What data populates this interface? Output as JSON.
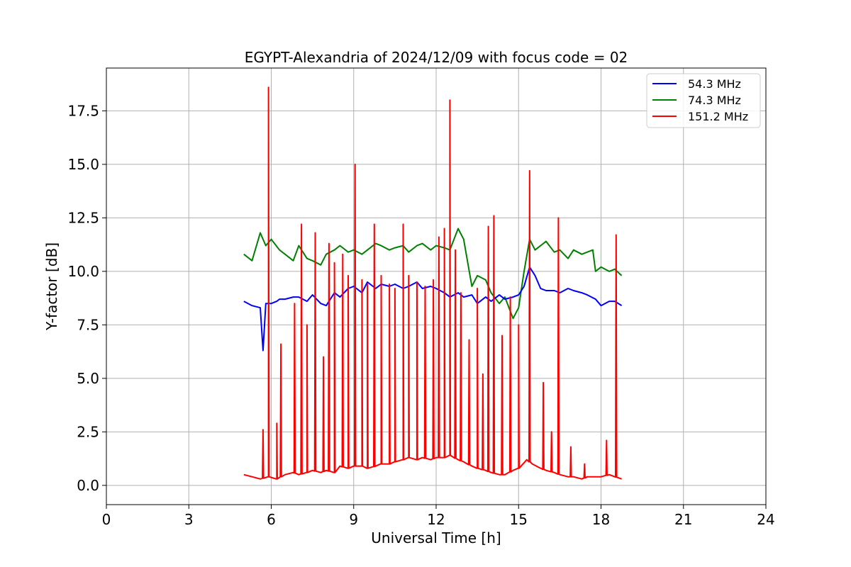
{
  "chart_data": {
    "type": "line",
    "title": "EGYPT-Alexandria of 2024/12/09 with focus code = 02",
    "xlabel": "Universal Time [h]",
    "ylabel": "Y-factor [dB]",
    "xlim": [
      0,
      24
    ],
    "ylim": [
      -0.9,
      19.5
    ],
    "xticks": [
      0,
      3,
      6,
      9,
      12,
      15,
      18,
      21,
      24
    ],
    "yticks": [
      0.0,
      2.5,
      5.0,
      7.5,
      10.0,
      12.5,
      15.0,
      17.5
    ],
    "ytick_labels": [
      "0.0",
      "2.5",
      "5.0",
      "7.5",
      "10.0",
      "12.5",
      "15.0",
      "17.5"
    ],
    "grid": true,
    "legend_position": "top-right",
    "series": [
      {
        "name": "54.3 MHz",
        "color": "#0000ff",
        "x": [
          5.0,
          5.3,
          5.6,
          5.7,
          5.8,
          6.0,
          6.2,
          6.3,
          6.5,
          6.8,
          7.0,
          7.3,
          7.5,
          7.8,
          8.0,
          8.3,
          8.5,
          8.8,
          9.0,
          9.3,
          9.5,
          9.8,
          10.0,
          10.3,
          10.5,
          10.8,
          11.0,
          11.3,
          11.5,
          11.8,
          12.0,
          12.3,
          12.5,
          12.8,
          13.0,
          13.3,
          13.5,
          13.8,
          14.0,
          14.3,
          14.5,
          14.8,
          15.0,
          15.2,
          15.4,
          15.6,
          15.8,
          16.0,
          16.3,
          16.5,
          16.8,
          17.0,
          17.3,
          17.5,
          17.8,
          18.0,
          18.3,
          18.5,
          18.75
        ],
        "y": [
          8.6,
          8.4,
          8.3,
          6.3,
          8.5,
          8.5,
          8.6,
          8.7,
          8.7,
          8.8,
          8.8,
          8.6,
          8.9,
          8.5,
          8.4,
          9.0,
          8.8,
          9.2,
          9.3,
          9.0,
          9.5,
          9.2,
          9.4,
          9.3,
          9.4,
          9.2,
          9.3,
          9.5,
          9.2,
          9.3,
          9.2,
          9.0,
          8.8,
          9.0,
          8.8,
          8.9,
          8.5,
          8.8,
          8.6,
          8.9,
          8.7,
          8.8,
          8.9,
          9.3,
          10.2,
          9.8,
          9.2,
          9.1,
          9.1,
          9.0,
          9.2,
          9.1,
          9.0,
          8.9,
          8.7,
          8.4,
          8.6,
          8.6,
          8.4
        ]
      },
      {
        "name": "74.3 MHz",
        "color": "#008000",
        "x": [
          5.0,
          5.3,
          5.6,
          5.8,
          6.0,
          6.3,
          6.5,
          6.8,
          7.0,
          7.3,
          7.5,
          7.8,
          8.0,
          8.3,
          8.5,
          8.8,
          9.0,
          9.3,
          9.5,
          9.8,
          10.0,
          10.3,
          10.5,
          10.8,
          11.0,
          11.3,
          11.5,
          11.8,
          12.0,
          12.3,
          12.5,
          12.8,
          13.0,
          13.3,
          13.5,
          13.8,
          14.0,
          14.3,
          14.5,
          14.8,
          15.0,
          15.2,
          15.4,
          15.6,
          15.8,
          16.0,
          16.3,
          16.5,
          16.8,
          17.0,
          17.3,
          17.5,
          17.7,
          17.8,
          18.0,
          18.3,
          18.5,
          18.75
        ],
        "y": [
          10.8,
          10.5,
          11.8,
          11.2,
          11.5,
          11.0,
          10.8,
          10.5,
          11.2,
          10.6,
          10.5,
          10.3,
          10.8,
          11.0,
          11.2,
          10.9,
          11.0,
          10.8,
          11.0,
          11.3,
          11.2,
          11.0,
          11.1,
          11.2,
          10.9,
          11.2,
          11.3,
          11.0,
          11.2,
          11.1,
          11.0,
          12.0,
          11.5,
          9.3,
          9.8,
          9.6,
          9.0,
          8.5,
          8.8,
          7.8,
          8.3,
          10.0,
          11.5,
          11.0,
          11.2,
          11.4,
          10.9,
          11.0,
          10.6,
          11.0,
          10.8,
          10.9,
          11.0,
          10.0,
          10.2,
          10.0,
          10.1,
          9.8
        ]
      },
      {
        "name": "151.2 MHz",
        "color": "#ff0000",
        "x": [
          5.0,
          5.3,
          5.6,
          5.9,
          6.2,
          6.5,
          6.8,
          7.0,
          7.3,
          7.5,
          7.8,
          8.0,
          8.3,
          8.5,
          8.8,
          9.0,
          9.3,
          9.5,
          9.8,
          10.0,
          10.3,
          10.5,
          10.8,
          11.0,
          11.3,
          11.5,
          11.8,
          12.0,
          12.3,
          12.5,
          12.8,
          13.0,
          13.3,
          13.5,
          13.8,
          14.0,
          14.3,
          14.5,
          14.8,
          15.0,
          15.3,
          15.5,
          15.8,
          16.0,
          16.3,
          16.5,
          16.8,
          17.0,
          17.3,
          17.5,
          17.8,
          18.0,
          18.3,
          18.5,
          18.75
        ],
        "y": [
          0.5,
          0.4,
          0.3,
          0.4,
          0.3,
          0.5,
          0.6,
          0.5,
          0.6,
          0.7,
          0.6,
          0.7,
          0.6,
          0.9,
          0.8,
          0.9,
          0.9,
          0.8,
          0.9,
          1.0,
          1.0,
          1.1,
          1.2,
          1.3,
          1.2,
          1.3,
          1.2,
          1.3,
          1.3,
          1.4,
          1.2,
          1.1,
          0.9,
          0.8,
          0.7,
          0.6,
          0.5,
          0.5,
          0.7,
          0.8,
          1.2,
          1.0,
          0.8,
          0.7,
          0.6,
          0.5,
          0.4,
          0.4,
          0.3,
          0.4,
          0.4,
          0.4,
          0.5,
          0.4,
          0.3
        ],
        "spikes": [
          {
            "x": 5.7,
            "y": 2.6
          },
          {
            "x": 5.9,
            "y": 18.6
          },
          {
            "x": 6.2,
            "y": 2.9
          },
          {
            "x": 6.35,
            "y": 6.6
          },
          {
            "x": 6.85,
            "y": 8.5
          },
          {
            "x": 7.1,
            "y": 12.2
          },
          {
            "x": 7.3,
            "y": 7.5
          },
          {
            "x": 7.6,
            "y": 11.8
          },
          {
            "x": 7.9,
            "y": 6.0
          },
          {
            "x": 8.1,
            "y": 11.3
          },
          {
            "x": 8.3,
            "y": 10.4
          },
          {
            "x": 8.6,
            "y": 10.8
          },
          {
            "x": 8.8,
            "y": 9.8
          },
          {
            "x": 9.05,
            "y": 15.0
          },
          {
            "x": 9.3,
            "y": 9.6
          },
          {
            "x": 9.5,
            "y": 9.4
          },
          {
            "x": 9.75,
            "y": 12.2
          },
          {
            "x": 10.0,
            "y": 9.8
          },
          {
            "x": 10.3,
            "y": 9.4
          },
          {
            "x": 10.5,
            "y": 9.2
          },
          {
            "x": 10.8,
            "y": 12.2
          },
          {
            "x": 11.0,
            "y": 9.8
          },
          {
            "x": 11.3,
            "y": 9.5
          },
          {
            "x": 11.6,
            "y": 9.3
          },
          {
            "x": 11.9,
            "y": 9.6
          },
          {
            "x": 12.1,
            "y": 11.6
          },
          {
            "x": 12.3,
            "y": 12.0
          },
          {
            "x": 12.5,
            "y": 18.0
          },
          {
            "x": 12.7,
            "y": 11.0
          },
          {
            "x": 12.9,
            "y": 9.0
          },
          {
            "x": 13.2,
            "y": 6.8
          },
          {
            "x": 13.5,
            "y": 9.2
          },
          {
            "x": 13.7,
            "y": 5.2
          },
          {
            "x": 13.9,
            "y": 12.1
          },
          {
            "x": 14.1,
            "y": 12.6
          },
          {
            "x": 14.4,
            "y": 7.0
          },
          {
            "x": 14.7,
            "y": 8.8
          },
          {
            "x": 15.0,
            "y": 7.5
          },
          {
            "x": 15.4,
            "y": 14.7
          },
          {
            "x": 15.9,
            "y": 4.8
          },
          {
            "x": 16.2,
            "y": 2.5
          },
          {
            "x": 16.45,
            "y": 12.5
          },
          {
            "x": 16.9,
            "y": 1.8
          },
          {
            "x": 17.4,
            "y": 1.0
          },
          {
            "x": 18.2,
            "y": 2.1
          },
          {
            "x": 18.55,
            "y": 11.7
          }
        ]
      }
    ]
  }
}
